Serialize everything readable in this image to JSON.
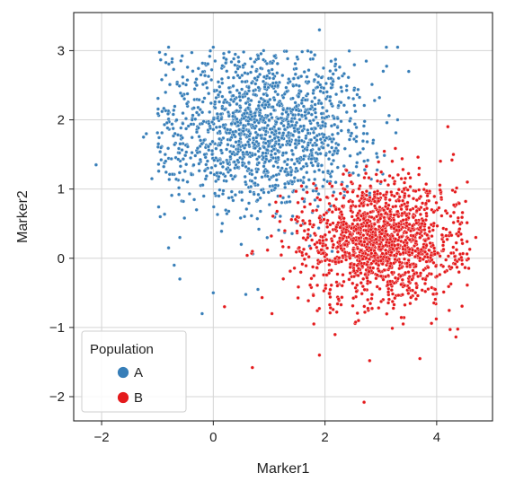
{
  "chart_data": {
    "type": "scatter",
    "title": "",
    "xlabel": "Marker1",
    "ylabel": "Marker2",
    "xlim": [
      -2.5,
      5.0
    ],
    "ylim": [
      -2.35,
      3.55
    ],
    "xticks": [
      -2,
      0,
      2,
      4
    ],
    "yticks": [
      -2,
      -1,
      0,
      1,
      2,
      3
    ],
    "xtick_labels": [
      "−2",
      "0",
      "2",
      "4"
    ],
    "ytick_labels": [
      "−2",
      "−1",
      "0",
      "1",
      "2",
      "3"
    ],
    "grid": true,
    "legend": {
      "title": "Population",
      "placement": "lower-left"
    },
    "series": [
      {
        "name": "A",
        "color": "#377eb8",
        "cluster": {
          "mean": [
            0.9,
            1.9
          ],
          "std": [
            0.9,
            0.6
          ],
          "n": 1500
        },
        "points": [
          [
            -2.1,
            1.35
          ],
          [
            -1.25,
            1.75
          ],
          [
            -1.2,
            1.8
          ],
          [
            -1.1,
            1.15
          ],
          [
            -0.95,
            0.6
          ],
          [
            -0.8,
            0.15
          ],
          [
            -0.7,
            -0.1
          ],
          [
            -0.6,
            0.3
          ],
          [
            -0.8,
            3.05
          ],
          [
            0.0,
            3.05
          ],
          [
            0.9,
            3.0
          ],
          [
            1.9,
            3.3
          ],
          [
            3.1,
            3.05
          ],
          [
            3.3,
            3.05
          ],
          [
            3.5,
            2.7
          ],
          [
            3.3,
            2.0
          ],
          [
            -0.6,
            -0.3
          ],
          [
            0.0,
            -0.5
          ],
          [
            -0.2,
            -0.8
          ],
          [
            0.8,
            -0.45
          ],
          [
            0.1,
            0.9
          ],
          [
            -0.3,
            0.7
          ],
          [
            0.5,
            0.2
          ],
          [
            2.8,
            0.9
          ],
          [
            2.6,
            1.2
          ]
        ]
      },
      {
        "name": "B",
        "color": "#e41a1c",
        "cluster": {
          "mean": [
            3.0,
            0.25
          ],
          "std": [
            0.7,
            0.45
          ],
          "n": 1500
        },
        "points": [
          [
            0.7,
            -1.58
          ],
          [
            1.9,
            -1.4
          ],
          [
            2.7,
            -2.08
          ],
          [
            2.8,
            -1.48
          ],
          [
            3.7,
            -1.45
          ],
          [
            4.2,
            1.9
          ],
          [
            4.55,
            1.1
          ],
          [
            4.3,
            1.5
          ],
          [
            4.4,
            -0.2
          ],
          [
            1.05,
            -0.8
          ],
          [
            0.2,
            -0.7
          ],
          [
            1.8,
            -0.95
          ],
          [
            2.6,
            -0.9
          ],
          [
            3.4,
            -0.95
          ],
          [
            1.2,
            0.9
          ],
          [
            0.7,
            0.1
          ],
          [
            1.5,
            0.6
          ],
          [
            4.7,
            0.3
          ]
        ]
      }
    ]
  }
}
